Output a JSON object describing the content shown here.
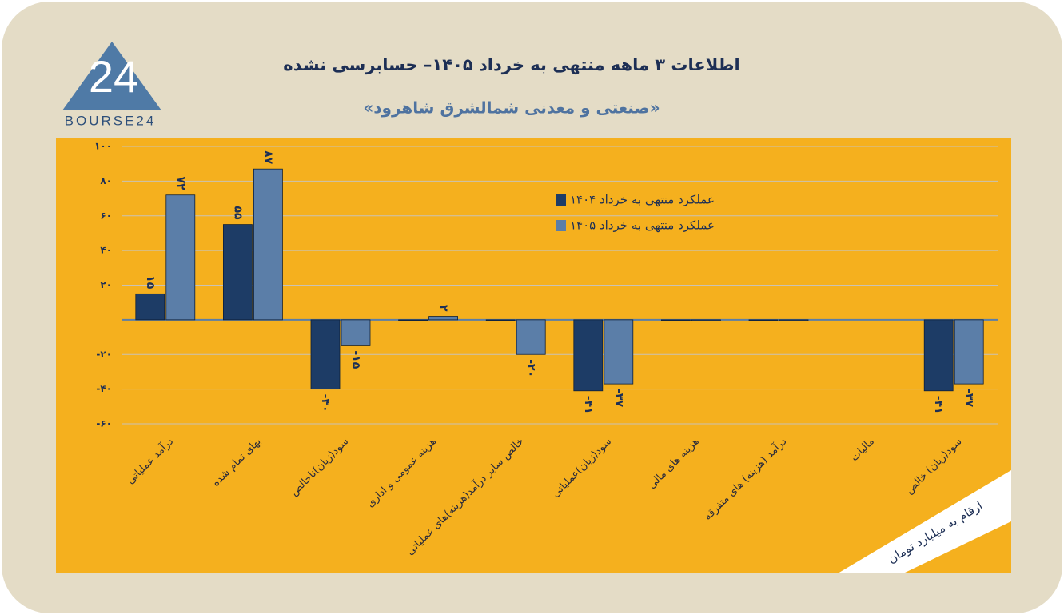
{
  "logo": {
    "mark": "24",
    "text": "BOURSE24"
  },
  "chart_data": {
    "type": "bar",
    "title": "اطلاعات ۳ ماهه منتهی به خرداد ۱۴۰۵– حسابرسی نشده",
    "subtitle": "«صنعتی و معدنی شمالشرق شاهرود»",
    "note": "ارقام به میلیارد تومان",
    "categories": [
      "درآمد عملیاتی",
      "بهای تمام شده",
      "سود(زیان)ناخالص",
      "هزینه عمومی و اداری",
      "خالص سایر درآمد(هزینه)های عملیاتی",
      "سود(زیان)عملیاتی",
      "هزینه های مالی",
      "درآمد (هزینه) های متفرقه",
      "مالیات",
      "سود(زیان) خالص"
    ],
    "series": [
      {
        "name": "عملکرد منتهی به خرداد ۱۴۰۴",
        "color": "#1d3c66",
        "values": [
          15,
          55,
          -40,
          0,
          0,
          -41,
          0,
          0,
          null,
          -41
        ],
        "value_labels": [
          "۱۵",
          "۵۵",
          "-۴۰",
          null,
          null,
          "-۴۱",
          null,
          null,
          null,
          "-۴۱"
        ]
      },
      {
        "name": "عملکرد منتهی به خرداد ۱۴۰۵",
        "color": "#5b7ea8",
        "values": [
          72,
          87,
          -15,
          2,
          -20,
          -37,
          0,
          0,
          null,
          -37
        ],
        "value_labels": [
          "۷۲",
          "۸۷",
          "-۱۵",
          "۲",
          "-۲۰",
          "-۳۷",
          null,
          null,
          null,
          "-۳۷"
        ]
      }
    ],
    "ylim": [
      -60,
      100
    ],
    "yticks": [
      {
        "value": -60,
        "label": "-۶۰"
      },
      {
        "value": -40,
        "label": "-۴۰"
      },
      {
        "value": -20,
        "label": "-۲۰"
      },
      {
        "value": 20,
        "label": "۲۰"
      },
      {
        "value": 40,
        "label": "۴۰"
      },
      {
        "value": 60,
        "label": "۶۰"
      },
      {
        "value": 80,
        "label": "۸۰"
      },
      {
        "value": 100,
        "label": "۱۰۰"
      }
    ],
    "grid": true
  }
}
